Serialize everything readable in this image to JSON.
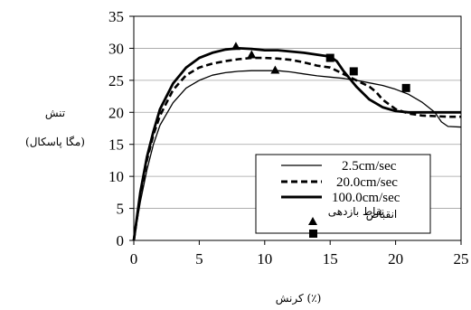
{
  "chart_data": {
    "type": "line",
    "xlabel": "کرنش (٪)",
    "ylabel_line1": "تنش",
    "ylabel_line2": "(مگا پاسکال)",
    "xlim": [
      0,
      25
    ],
    "ylim": [
      0,
      35
    ],
    "xticks": [
      0,
      5,
      10,
      15,
      20,
      25
    ],
    "yticks": [
      0,
      5,
      10,
      15,
      20,
      25,
      30,
      35
    ],
    "legend_position": "right",
    "series": [
      {
        "name": "2.5cm/sec",
        "style": "thin-solid",
        "x": [
          0,
          0.5,
          1,
          1.5,
          2,
          3,
          4,
          5,
          6,
          7,
          8,
          9,
          10,
          11,
          12,
          13,
          14,
          15,
          16,
          17,
          18,
          19,
          20,
          21,
          22,
          23,
          23.5,
          24,
          25
        ],
        "y": [
          0,
          6,
          11,
          15,
          18,
          21.5,
          23.8,
          25,
          25.8,
          26.2,
          26.4,
          26.5,
          26.5,
          26.5,
          26.3,
          26,
          25.7,
          25.5,
          25.3,
          25,
          24.6,
          24.2,
          23.6,
          22.8,
          21.6,
          20,
          18.5,
          17.8,
          17.7
        ]
      },
      {
        "name": "20.0cm/sec",
        "style": "dashed",
        "x": [
          0,
          0.5,
          1,
          1.5,
          2,
          3,
          4,
          5,
          6,
          7,
          8,
          9,
          10,
          11,
          12,
          13,
          14,
          15,
          15.5,
          16,
          17,
          18,
          18.5,
          19,
          20,
          21,
          22,
          23,
          24,
          25
        ],
        "y": [
          0,
          7,
          12.5,
          16.5,
          19.5,
          23.5,
          25.8,
          27,
          27.6,
          28,
          28.3,
          28.5,
          28.5,
          28.4,
          28.2,
          27.8,
          27.3,
          27,
          26.5,
          26,
          25,
          24,
          23.2,
          22,
          20.5,
          19.8,
          19.5,
          19.4,
          19.3,
          19.3
        ]
      },
      {
        "name": "100.0cm/sec",
        "style": "thick-solid",
        "x": [
          0,
          0.5,
          1,
          1.5,
          2,
          3,
          4,
          5,
          6,
          7,
          8,
          9,
          10,
          11,
          12,
          13,
          14,
          15,
          15.5,
          16,
          17,
          18,
          19,
          20,
          21,
          22,
          23,
          24,
          25
        ],
        "y": [
          0,
          7.5,
          13,
          17,
          20.5,
          24.5,
          27,
          28.5,
          29.3,
          29.8,
          30,
          29.9,
          29.7,
          29.7,
          29.5,
          29.3,
          29,
          28.7,
          28,
          26.5,
          24,
          22,
          20.8,
          20.2,
          20,
          20,
          20,
          20,
          20
        ]
      }
    ],
    "markers": [
      {
        "name": "نقاط بازدهی",
        "shape": "triangle",
        "points": [
          [
            7.8,
            30.3
          ],
          [
            9,
            29
          ],
          [
            10.8,
            26.6
          ]
        ]
      },
      {
        "name": "انقباض",
        "shape": "square",
        "points": [
          [
            15,
            28.5
          ],
          [
            16.8,
            26.4
          ],
          [
            20.8,
            23.8
          ]
        ]
      }
    ]
  }
}
